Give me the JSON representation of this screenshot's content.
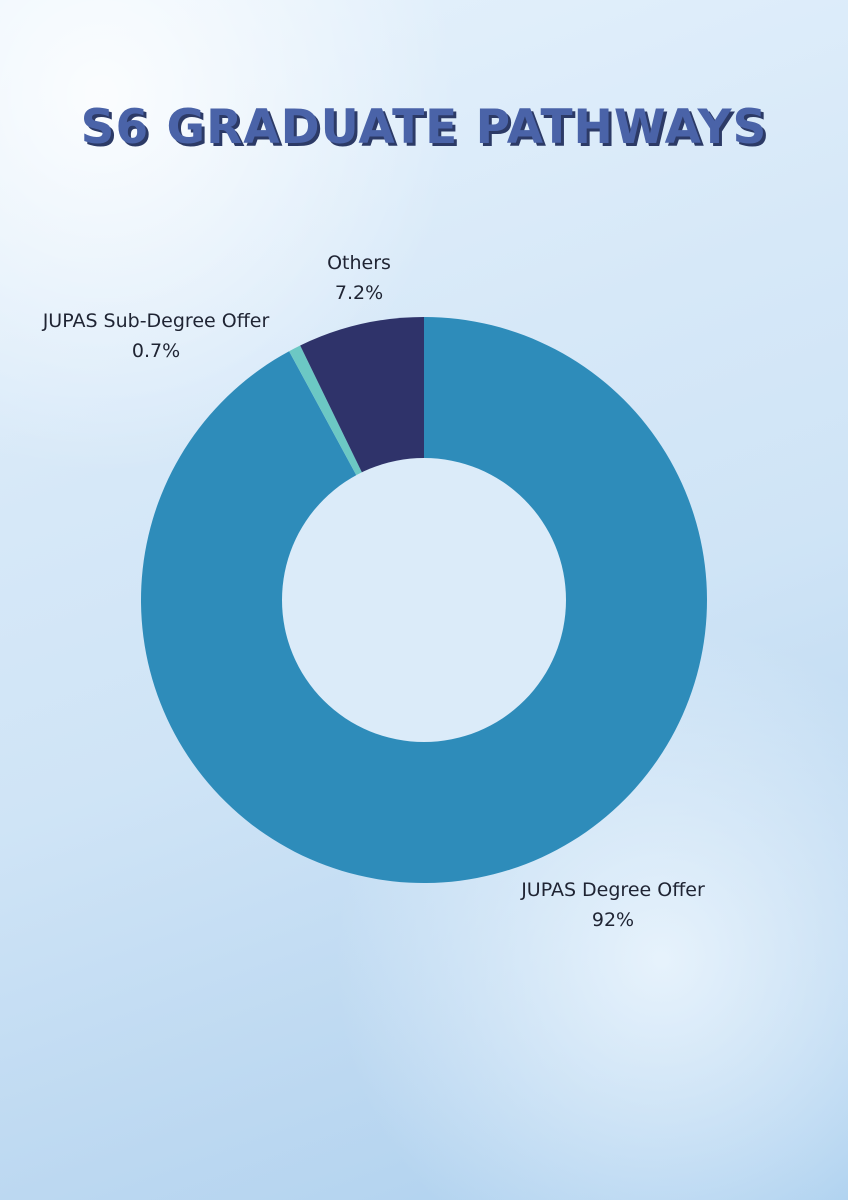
{
  "chart_data": {
    "type": "pie",
    "title": "S6 GRADUATE PATHWAYS",
    "donut": true,
    "slices": [
      {
        "label": "JUPAS Degree Offer",
        "value": 92,
        "value_label": "92%",
        "color": "#2e8cba"
      },
      {
        "label": "JUPAS Sub-Degree Offer",
        "value": 0.7,
        "value_label": "0.7%",
        "color": "#6cc8c4"
      },
      {
        "label": "Others",
        "value": 7.2,
        "value_label": "7.2%",
        "color": "#2f336a"
      }
    ],
    "background_color": "#d6e8f8",
    "title_color": "#4a63a8"
  }
}
